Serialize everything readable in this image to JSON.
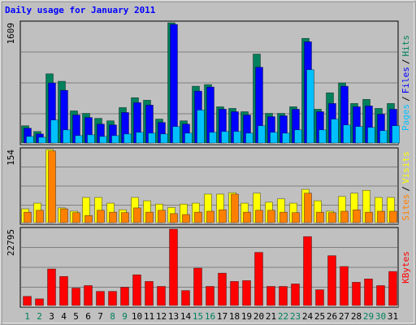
{
  "title": "Daily usage for January 2011",
  "legend_separator": "/",
  "chart_data": [
    {
      "type": "bar",
      "series": [
        {
          "name": "Hits",
          "color": "#00805c",
          "values": [
            231,
            154,
            926,
            826,
            430,
            397,
            330,
            297,
            474,
            606,
            573,
            320,
            1609,
            297,
            760,
            782,
            485,
            463,
            419,
            1190,
            397,
            397,
            485,
            1400,
            452,
            672,
            804,
            529,
            584,
            463,
            529
          ]
        },
        {
          "name": "Files",
          "color": "#0000ff",
          "values": [
            198,
            121,
            804,
            705,
            375,
            341,
            253,
            242,
            408,
            540,
            507,
            275,
            1587,
            253,
            694,
            749,
            452,
            419,
            375,
            1014,
            353,
            364,
            452,
            1355,
            419,
            529,
            760,
            485,
            496,
            386,
            452
          ]
        },
        {
          "name": "Pages",
          "color": "#00c0ff",
          "values": [
            88,
            77,
            308,
            176,
            99,
            110,
            88,
            99,
            121,
            143,
            132,
            121,
            220,
            132,
            441,
            143,
            154,
            154,
            132,
            231,
            143,
            132,
            176,
            981,
            176,
            320,
            242,
            220,
            209,
            165,
            231
          ]
        }
      ],
      "ylim": [
        0,
        1609
      ],
      "yticks": [
        1609
      ]
    },
    {
      "type": "bar",
      "series": [
        {
          "name": "Visits",
          "color": "#ffff00",
          "values": [
            29,
            41,
            154,
            31,
            24,
            53,
            53,
            41,
            27,
            53,
            46,
            39,
            32,
            39,
            41,
            60,
            60,
            63,
            41,
            62,
            43,
            50,
            41,
            70,
            46,
            24,
            55,
            62,
            68,
            53,
            53
          ]
        },
        {
          "name": "Sites",
          "color": "#ff8000",
          "values": [
            22,
            26,
            151,
            29,
            21,
            15,
            26,
            22,
            21,
            31,
            22,
            26,
            19,
            17,
            22,
            24,
            27,
            60,
            22,
            26,
            26,
            22,
            21,
            62,
            22,
            21,
            24,
            27,
            22,
            24,
            24
          ]
        }
      ],
      "ylim": [
        0,
        154
      ],
      "yticks": [
        154
      ]
    },
    {
      "type": "bar",
      "categories": [
        "1",
        "2",
        "3",
        "4",
        "5",
        "6",
        "7",
        "8",
        "9",
        "10",
        "11",
        "12",
        "13",
        "14",
        "15",
        "16",
        "17",
        "18",
        "19",
        "20",
        "21",
        "22",
        "23",
        "24",
        "25",
        "26",
        "27",
        "28",
        "29",
        "30",
        "31"
      ],
      "category_colors": [
        "#00805c",
        "#00805c",
        "#000000",
        "#000000",
        "#000000",
        "#000000",
        "#000000",
        "#00805c",
        "#00805c",
        "#000000",
        "#000000",
        "#000000",
        "#000000",
        "#000000",
        "#00805c",
        "#00805c",
        "#000000",
        "#000000",
        "#000000",
        "#000000",
        "#000000",
        "#00805c",
        "#00805c",
        "#000000",
        "#000000",
        "#000000",
        "#000000",
        "#000000",
        "#00805c",
        "#00805c",
        "#000000"
      ],
      "series": [
        {
          "name": "KBytes",
          "color": "#ff0000",
          "values": [
            2726,
            1982,
            10903,
            8673,
            5204,
            5947,
            4213,
            4213,
            5452,
            9168,
            7186,
            5699,
            22795,
            4460,
            11151,
            5699,
            9664,
            7186,
            7434,
            15859,
            5699,
            5699,
            6443,
            20567,
            4708,
            14868,
            11647,
            6938,
            7930,
            5947,
            10160
          ]
        }
      ],
      "ylim": [
        0,
        22795
      ],
      "yticks": [
        22795
      ]
    }
  ]
}
